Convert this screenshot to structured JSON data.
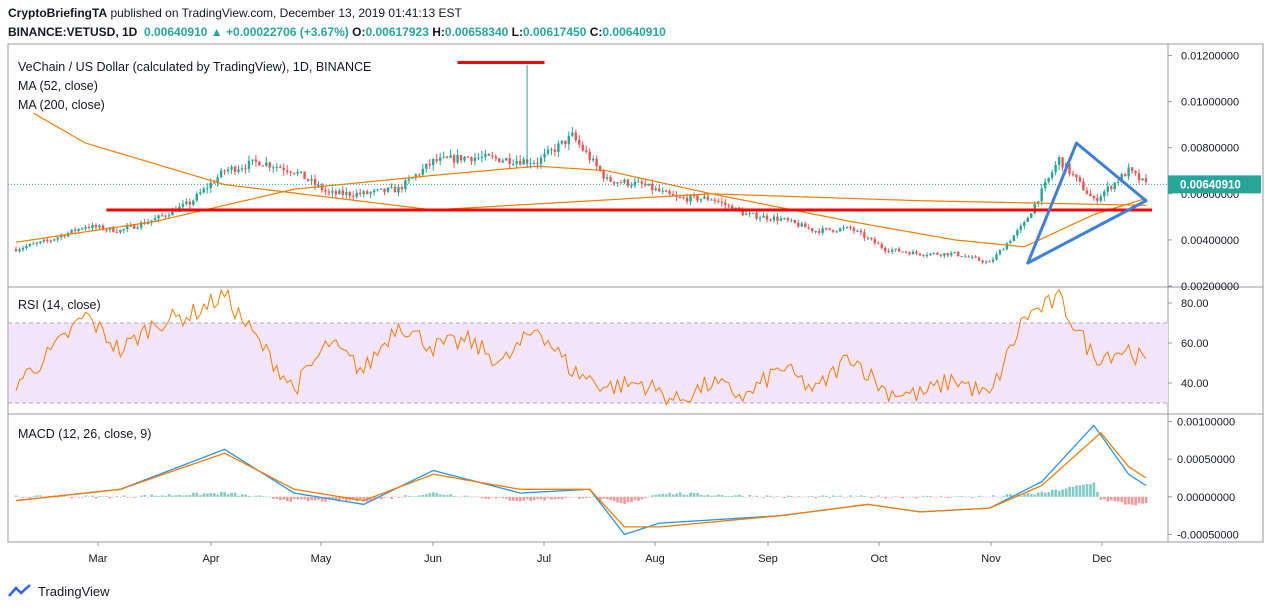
{
  "header": {
    "publisher": "CryptoBriefingTA",
    "published_text": "published on TradingView.com, December 13, 2019 01:41:13 EST",
    "symbol": "BINANCE:VETUSD, 1D",
    "last": "0.00640910",
    "change_arrow": "▲",
    "change": "+0.00022706 (+3.67%)",
    "o_label": "O:",
    "o": "0.00617923",
    "h_label": "H:",
    "h": "0.00658340",
    "l_label": "L:",
    "l": "0.00617450",
    "c_label": "C:",
    "c": "0.00640910"
  },
  "legend": {
    "title": "VeChain / US Dollar (calculated by TradingView), 1D, BINANCE",
    "ma52": "MA (52, close)",
    "ma200": "MA (200, close)",
    "rsi": "RSI (14, close)",
    "macd": "MACD (12, 26, close, 9)"
  },
  "footer": {
    "brand": "TradingView"
  },
  "colors": {
    "up": "#26a69a",
    "down": "#ef5350",
    "ma": "#f57c00",
    "annotation_red": "#ff0000",
    "annotation_blue": "#3d7fd9",
    "rsi_line": "#f57c00",
    "rsi_band": "#f3e5fb",
    "macd_line": "#2196f3",
    "signal_line": "#f57c00"
  },
  "chart_data": [
    {
      "type": "candlestick",
      "title": "VeChain / US Dollar (calculated by TradingView), 1D, BINANCE",
      "ylim": [
        0.002,
        0.0125
      ],
      "yticks": [
        "0.01200000",
        "0.01000000",
        "0.00800000",
        "0.00600000",
        "0.00400000",
        "0.00200000"
      ],
      "last_price_label": "0.00640910",
      "last_price": 0.0064091,
      "x_labels": [
        "Mar",
        "Apr",
        "May",
        "Jun",
        "Jul",
        "Aug",
        "Sep",
        "Oct",
        "Nov",
        "Dec"
      ],
      "close_path": [
        [
          0,
          0.0036
        ],
        [
          10,
          0.004
        ],
        [
          20,
          0.0046
        ],
        [
          30,
          0.0044
        ],
        [
          40,
          0.0049
        ],
        [
          50,
          0.0056
        ],
        [
          60,
          0.007
        ],
        [
          70,
          0.0074
        ],
        [
          80,
          0.007
        ],
        [
          90,
          0.006
        ],
        [
          100,
          0.006
        ],
        [
          110,
          0.0062
        ],
        [
          120,
          0.0074
        ],
        [
          130,
          0.0076
        ],
        [
          140,
          0.0075
        ],
        [
          150,
          0.0074
        ],
        [
          160,
          0.0085
        ],
        [
          170,
          0.0066
        ],
        [
          180,
          0.0064
        ],
        [
          190,
          0.0058
        ],
        [
          200,
          0.0058
        ],
        [
          210,
          0.0051
        ],
        [
          220,
          0.0049
        ],
        [
          230,
          0.0044
        ],
        [
          240,
          0.0045
        ],
        [
          250,
          0.0036
        ],
        [
          260,
          0.0034
        ],
        [
          270,
          0.0034
        ],
        [
          280,
          0.003
        ],
        [
          290,
          0.0047
        ],
        [
          300,
          0.0075
        ],
        [
          310,
          0.0057
        ],
        [
          320,
          0.007
        ],
        [
          325,
          0.0064
        ]
      ],
      "ma52_path": [
        [
          0,
          0.0039
        ],
        [
          40,
          0.0048
        ],
        [
          80,
          0.0062
        ],
        [
          120,
          0.0068
        ],
        [
          150,
          0.0072
        ],
        [
          170,
          0.007
        ],
        [
          200,
          0.006
        ],
        [
          240,
          0.0048
        ],
        [
          270,
          0.004
        ],
        [
          290,
          0.0037
        ],
        [
          310,
          0.0051
        ],
        [
          325,
          0.0058
        ]
      ],
      "ma200_path": [
        [
          5,
          0.0095
        ],
        [
          20,
          0.0082
        ],
        [
          60,
          0.0064
        ],
        [
          120,
          0.0053
        ],
        [
          200,
          0.006
        ],
        [
          260,
          0.0057
        ],
        [
          325,
          0.0055
        ]
      ],
      "annotations": [
        {
          "kind": "resistance",
          "y": 0.0117
        },
        {
          "kind": "support",
          "y": 0.0053
        },
        {
          "kind": "triangle",
          "points": [
            [
              305,
              0.0082
            ],
            [
              325,
              0.0057
            ],
            [
              291,
              0.003
            ]
          ]
        }
      ]
    },
    {
      "type": "line",
      "title": "RSI (14, close)",
      "ylim": [
        25,
        88
      ],
      "yticks": [
        "80.00",
        "60.00",
        "40.00"
      ],
      "bands": [
        30,
        70
      ],
      "values_path": [
        [
          0,
          40
        ],
        [
          10,
          55
        ],
        [
          20,
          74
        ],
        [
          30,
          56
        ],
        [
          40,
          70
        ],
        [
          50,
          74
        ],
        [
          60,
          84
        ],
        [
          70,
          60
        ],
        [
          80,
          37
        ],
        [
          90,
          60
        ],
        [
          100,
          46
        ],
        [
          110,
          70
        ],
        [
          120,
          58
        ],
        [
          130,
          61
        ],
        [
          140,
          50
        ],
        [
          150,
          68
        ],
        [
          160,
          46
        ],
        [
          170,
          38
        ],
        [
          180,
          40
        ],
        [
          190,
          31
        ],
        [
          200,
          40
        ],
        [
          210,
          33
        ],
        [
          220,
          48
        ],
        [
          230,
          36
        ],
        [
          240,
          54
        ],
        [
          250,
          36
        ],
        [
          260,
          34
        ],
        [
          270,
          42
        ],
        [
          280,
          33
        ],
        [
          290,
          73
        ],
        [
          300,
          82
        ],
        [
          310,
          53
        ],
        [
          320,
          57
        ],
        [
          325,
          50
        ]
      ]
    },
    {
      "type": "macd",
      "title": "MACD (12, 26, close, 9)",
      "ylim": [
        -0.0006,
        0.0011
      ],
      "yticks": [
        "0.00100000",
        "0.00050000",
        "0.00000000",
        "-0.00050000"
      ],
      "macd_path": [
        [
          0,
          -5e-05
        ],
        [
          30,
          0.0001
        ],
        [
          60,
          0.00063
        ],
        [
          80,
          5e-05
        ],
        [
          100,
          -0.0001
        ],
        [
          120,
          0.00035
        ],
        [
          145,
          5e-05
        ],
        [
          165,
          0.0001
        ],
        [
          175,
          -0.0005
        ],
        [
          185,
          -0.00035
        ],
        [
          220,
          -0.00025
        ],
        [
          245,
          -0.0001
        ],
        [
          260,
          -0.0002
        ],
        [
          280,
          -0.00015
        ],
        [
          295,
          0.0002
        ],
        [
          310,
          0.00095
        ],
        [
          320,
          0.0003
        ],
        [
          325,
          0.00015
        ]
      ],
      "signal_path": [
        [
          0,
          -5e-05
        ],
        [
          30,
          0.0001
        ],
        [
          60,
          0.00058
        ],
        [
          80,
          0.0001
        ],
        [
          100,
          -5e-05
        ],
        [
          120,
          0.0003
        ],
        [
          145,
          0.0001
        ],
        [
          165,
          0.0001
        ],
        [
          175,
          -0.0004
        ],
        [
          185,
          -0.0004
        ],
        [
          220,
          -0.00025
        ],
        [
          245,
          -0.0001
        ],
        [
          260,
          -0.0002
        ],
        [
          280,
          -0.00015
        ],
        [
          295,
          0.00015
        ],
        [
          312,
          0.00085
        ],
        [
          320,
          0.0004
        ],
        [
          325,
          0.00025
        ]
      ]
    }
  ]
}
